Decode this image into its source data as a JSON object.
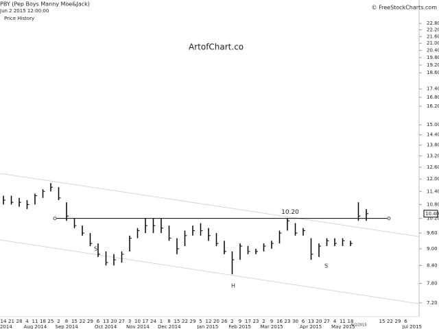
{
  "chart_data": {
    "type": "ohlc",
    "title": "PBY (Pep Boys Manny Moe&Jack)",
    "subtitle": "Jun 2 2015 12:00:00",
    "panel_label": "Price History",
    "watermark": "ArtofChart.co",
    "source": "© FreeStockCharts.com",
    "date_marker": "6/2/2015",
    "annotations": [
      "S",
      "H",
      "S"
    ],
    "categories": [
      "14",
      "21",
      "28",
      "4",
      "11",
      "18",
      "25",
      "2",
      "8",
      "15",
      "22",
      "29",
      "6",
      "13",
      "20",
      "27",
      "3",
      "10",
      "17",
      "24",
      "1",
      "8",
      "15",
      "22",
      "29",
      "5",
      "12",
      "20",
      "26",
      "2",
      "9",
      "17",
      "23",
      "2",
      "9",
      "16",
      "23",
      "30",
      "6",
      "13",
      "20",
      "27",
      "4",
      "11",
      "18",
      null,
      null,
      null,
      "15",
      "22",
      "29",
      "6"
    ],
    "month_labels": [
      "2014",
      null,
      null,
      "Aug 2014",
      null,
      null,
      null,
      "Sep 2014",
      null,
      null,
      null,
      null,
      "Oct 2014",
      null,
      null,
      null,
      "Nov 2014",
      null,
      null,
      null,
      "Dec 2014",
      null,
      null,
      null,
      null,
      "Jan 2015",
      null,
      null,
      null,
      "Feb 2015",
      null,
      null,
      null,
      "Mar 2015",
      null,
      null,
      null,
      null,
      "Apr 2015",
      null,
      null,
      null,
      "May 2015",
      null,
      null,
      null,
      null,
      null,
      null,
      null,
      null,
      "Jul 2015"
    ],
    "color": "#000000",
    "high": [
      11.2,
      11.2,
      11.1,
      11.0,
      11.3,
      11.5,
      11.8,
      11.6,
      10.9,
      10.2,
      9.9,
      9.6,
      9.2,
      8.9,
      8.8,
      8.9,
      9.5,
      9.8,
      10.2,
      10.2,
      10.2,
      9.9,
      9.4,
      9.7,
      9.9,
      10.0,
      9.8,
      9.6,
      9.3,
      8.9,
      9.2,
      9.1,
      9.0,
      9.2,
      9.3,
      9.7,
      10.2,
      10.0,
      9.8,
      9.4,
      9.2,
      9.4,
      9.4,
      9.4,
      9.3,
      10.9,
      10.6,
      null,
      null,
      null,
      null,
      null
    ],
    "low": [
      10.8,
      10.8,
      10.7,
      10.6,
      10.8,
      11.1,
      11.4,
      11.0,
      10.1,
      9.8,
      9.5,
      9.1,
      8.7,
      8.4,
      8.4,
      8.5,
      8.9,
      9.4,
      9.6,
      9.6,
      9.6,
      9.3,
      8.8,
      9.1,
      9.5,
      9.5,
      9.3,
      9.1,
      8.8,
      8.1,
      8.6,
      8.8,
      8.8,
      8.9,
      9.0,
      9.2,
      9.7,
      9.5,
      9.5,
      8.6,
      8.7,
      9.1,
      9.1,
      9.1,
      9.1,
      10.1,
      10.1,
      null,
      null,
      null,
      null,
      null
    ],
    "close": [
      11.0,
      10.9,
      10.9,
      10.8,
      11.2,
      11.4,
      11.6,
      11.1,
      10.3,
      9.9,
      9.6,
      9.2,
      8.8,
      8.5,
      8.6,
      8.8,
      9.4,
      9.7,
      9.9,
      9.9,
      9.8,
      9.4,
      9.0,
      9.5,
      9.7,
      9.7,
      9.5,
      9.2,
      8.9,
      8.6,
      9.1,
      8.9,
      8.9,
      9.1,
      9.2,
      9.6,
      10.1,
      9.6,
      9.7,
      8.8,
      9.1,
      9.3,
      9.2,
      9.3,
      9.2,
      10.3,
      10.4,
      null,
      null,
      null,
      null,
      null
    ],
    "neckline": {
      "value": 10.2,
      "label": "10.20"
    },
    "last_price": {
      "value": 10.4,
      "label": "10.40"
    },
    "log_scale": true,
    "grid": false,
    "ylim": [
      6.5,
      23.2
    ],
    "yticks": [
      {
        "value": 22.8,
        "label": "22.80"
      },
      {
        "value": 22.2,
        "label": "22.20"
      },
      {
        "value": 21.6,
        "label": "21.60"
      },
      {
        "value": 21.0,
        "label": "21.00"
      },
      {
        "value": 20.4,
        "label": "20.40"
      },
      {
        "value": 19.8,
        "label": "19.80"
      },
      {
        "value": 19.2,
        "label": "19.20"
      },
      {
        "value": 18.6,
        "label": "18.60"
      },
      {
        "value": 17.4,
        "label": "17.40"
      },
      {
        "value": 16.8,
        "label": "16.80"
      },
      {
        "value": 16.2,
        "label": "16.20"
      },
      {
        "value": 15.0,
        "label": "15.00"
      },
      {
        "value": 14.4,
        "label": "14.40"
      },
      {
        "value": 13.8,
        "label": "13.80"
      },
      {
        "value": 13.2,
        "label": "13.20"
      },
      {
        "value": 12.6,
        "label": "12.60"
      },
      {
        "value": 12.0,
        "label": "12.00"
      },
      {
        "value": 11.4,
        "label": "11.40"
      },
      {
        "value": 10.8,
        "label": "10.80"
      },
      {
        "value": 10.2,
        "label": "10.20"
      },
      {
        "value": 9.6,
        "label": "9.60"
      },
      {
        "value": 9.0,
        "label": "9.00"
      },
      {
        "value": 8.4,
        "label": "8.40"
      },
      {
        "value": 7.8,
        "label": "7.80"
      },
      {
        "value": 7.2,
        "label": "7.20"
      }
    ]
  }
}
